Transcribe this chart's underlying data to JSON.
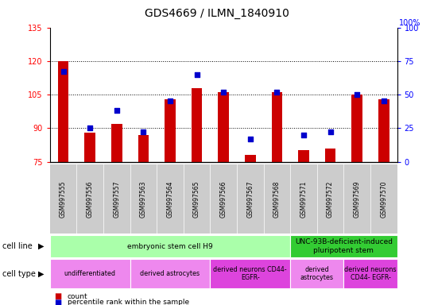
{
  "title": "GDS4669 / ILMN_1840910",
  "samples": [
    "GSM997555",
    "GSM997556",
    "GSM997557",
    "GSM997563",
    "GSM997564",
    "GSM997565",
    "GSM997566",
    "GSM997567",
    "GSM997568",
    "GSM997571",
    "GSM997572",
    "GSM997569",
    "GSM997570"
  ],
  "counts": [
    120,
    88,
    92,
    87,
    103,
    108,
    106,
    78,
    106,
    80,
    81,
    105,
    103
  ],
  "percentiles": [
    67,
    25,
    38,
    22,
    45,
    65,
    52,
    17,
    52,
    20,
    22,
    50,
    45
  ],
  "ylim_left": [
    75,
    135
  ],
  "ylim_right": [
    0,
    100
  ],
  "yticks_left": [
    75,
    90,
    105,
    120,
    135
  ],
  "yticks_right": [
    0,
    25,
    50,
    75,
    100
  ],
  "bar_color": "#cc0000",
  "dot_color": "#0000cc",
  "bar_width": 0.4,
  "dot_size": 22,
  "cell_line_groups": [
    {
      "label": "embryonic stem cell H9",
      "start": 0,
      "end": 8,
      "color": "#aaffaa"
    },
    {
      "label": "UNC-93B-deficient-induced\npluripotent stem",
      "start": 9,
      "end": 12,
      "color": "#33cc33"
    }
  ],
  "cell_type_groups": [
    {
      "label": "undifferentiated",
      "start": 0,
      "end": 2,
      "color": "#ee88ee"
    },
    {
      "label": "derived astrocytes",
      "start": 3,
      "end": 5,
      "color": "#ee88ee"
    },
    {
      "label": "derived neurons CD44-\nEGFR-",
      "start": 6,
      "end": 8,
      "color": "#dd44dd"
    },
    {
      "label": "derived\nastrocytes",
      "start": 9,
      "end": 10,
      "color": "#ee88ee"
    },
    {
      "label": "derived neurons\nCD44- EGFR-",
      "start": 11,
      "end": 12,
      "color": "#dd44dd"
    }
  ],
  "grid_yticks": [
    90,
    105,
    120
  ],
  "bar_facecolor": "#dddddd",
  "plot_bg": "#ffffff",
  "xticklabel_bg": "#cccccc"
}
